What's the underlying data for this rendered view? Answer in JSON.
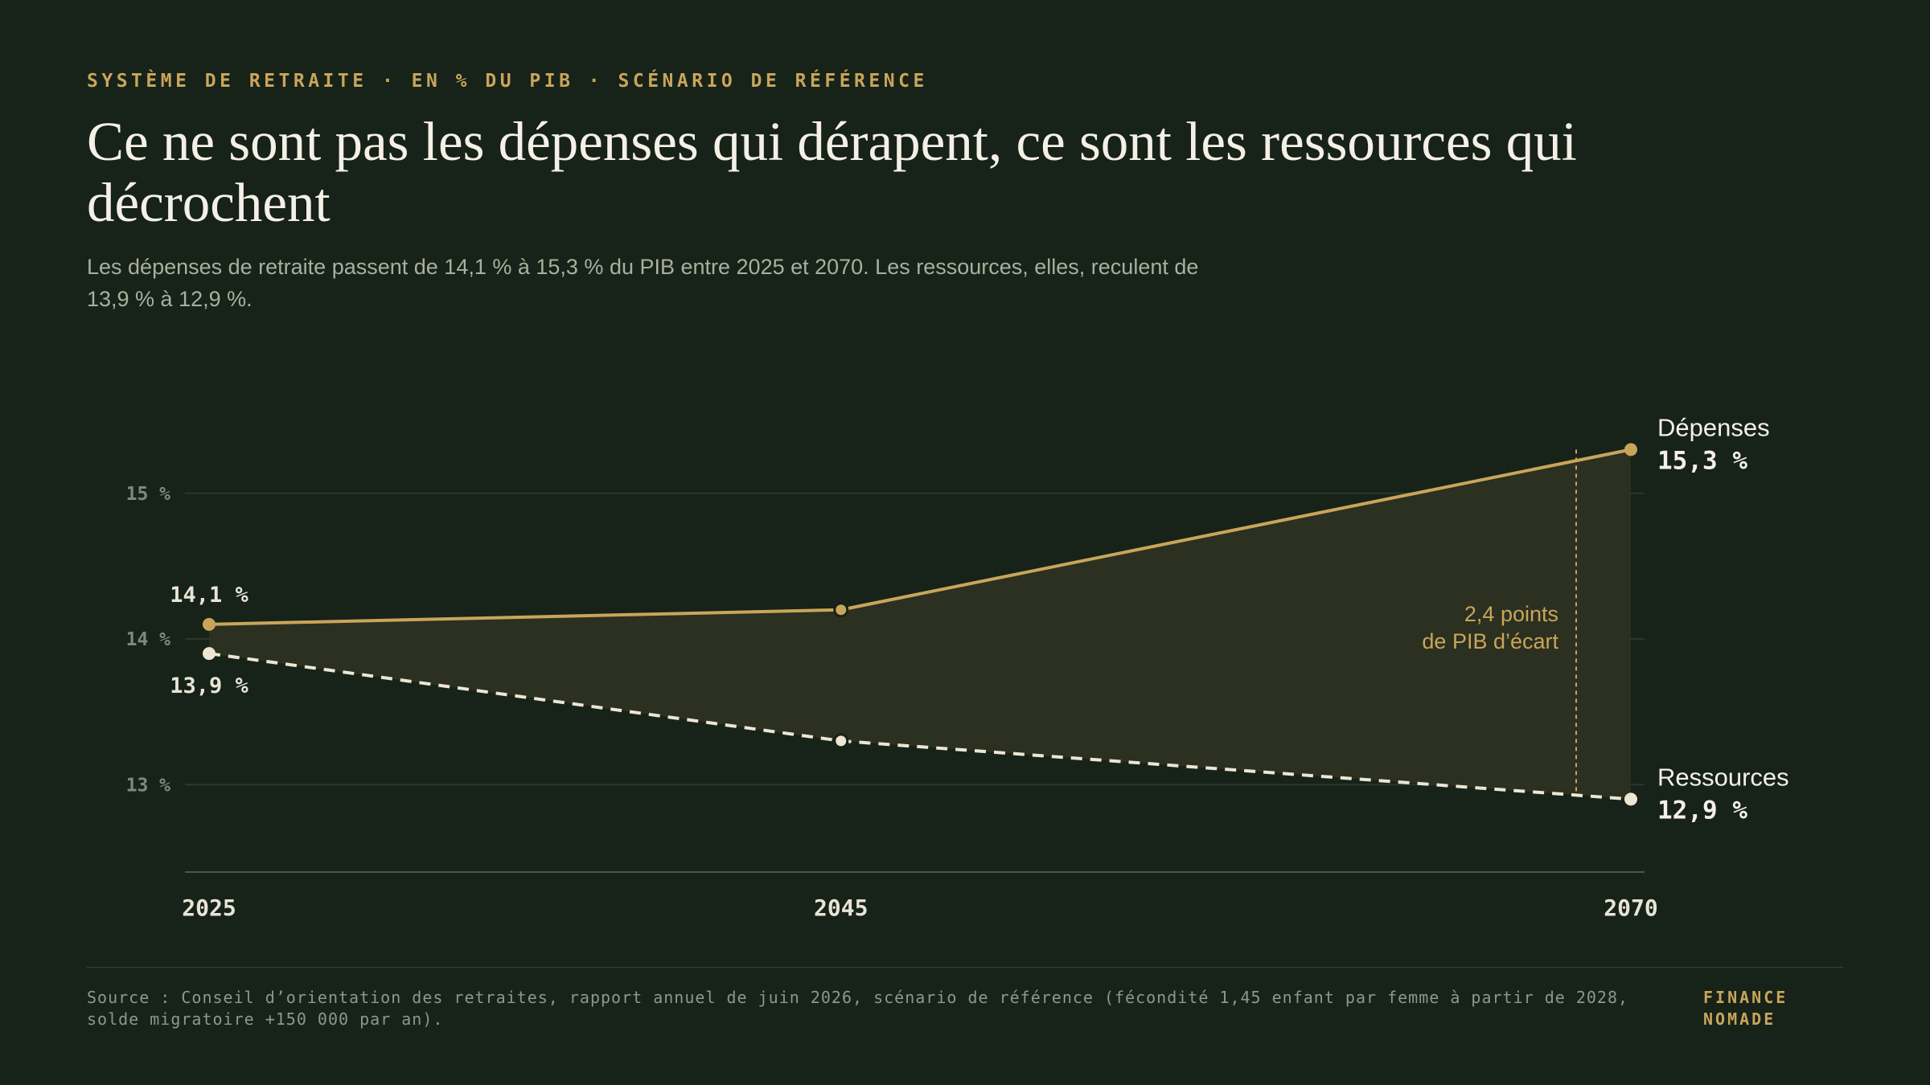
{
  "header": {
    "eyebrow": "SYSTÈME DE RETRAITE · EN % DU PIB · SCÉNARIO DE RÉFÉRENCE",
    "title": "Ce ne sont pas les dépenses qui dérapent, ce sont les ressources qui décrochent",
    "subtitle": "Les dépenses de retraite passent de 14,1 % à 15,3 % du PIB entre 2025 et 2070. Les ressources, elles, reculent de 13,9 % à 12,9 %."
  },
  "chart_data": {
    "type": "line",
    "x": [
      2025,
      2045,
      2070
    ],
    "x_tick_labels": [
      "2025",
      "2045",
      "2070"
    ],
    "ylim": [
      12.4,
      15.6
    ],
    "y_ticks": [
      13,
      14,
      15
    ],
    "y_tick_labels": [
      "13 %",
      "14 %",
      "15 %"
    ],
    "grid": true,
    "series": [
      {
        "name": "Dépenses",
        "values": [
          14.1,
          14.2,
          15.3
        ],
        "style": "solid",
        "color": "#c9a55a",
        "start_label": "14,1 %",
        "end_label": "15,3 %"
      },
      {
        "name": "Ressources",
        "values": [
          13.9,
          13.3,
          12.9
        ],
        "style": "dashed",
        "color": "#ede6d3",
        "start_label": "13,9 %",
        "end_label": "12,9 %"
      }
    ],
    "annotation": {
      "lines": [
        "2,4 points",
        "de PIB d’écart"
      ],
      "color": "#c9a55a"
    },
    "gap_fill_color": "#2c3121"
  },
  "footer": {
    "source": "Source : Conseil d’orientation des retraites, rapport annuel de juin 2026, scénario de référence (fécondité 1,45 enfant par femme à partir de 2028, solde migratoire +150 000 par an).",
    "brand_line1": "FINANCE",
    "brand_line2": "NOMADE"
  }
}
